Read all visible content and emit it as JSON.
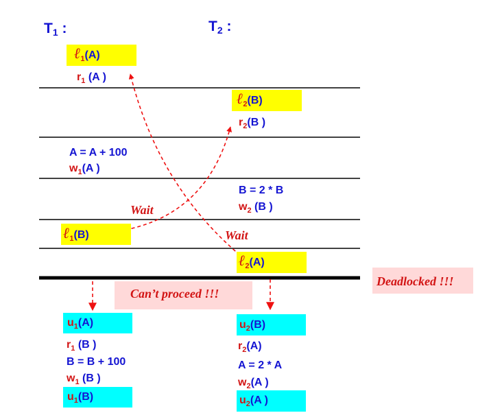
{
  "headers": {
    "t1": {
      "name": "T",
      "sub": "1",
      "colon": ":"
    },
    "t2": {
      "name": "T",
      "sub": "2",
      "colon": ":"
    }
  },
  "lock_glyph": "ℓ",
  "steps": {
    "l1A": {
      "sub": "1",
      "open": "(",
      "item": "A",
      "close": ")"
    },
    "r1A": {
      "op": "r",
      "sub": "1",
      "open": "(",
      "item": "A",
      "close": ")"
    },
    "l2B": {
      "sub": "2",
      "open": "(",
      "item": "B",
      "close": ")"
    },
    "r2B": {
      "op": "r",
      "sub": "2",
      "open": "(",
      "item": "B",
      "close": ")"
    },
    "calcA": "A = A + 100",
    "w1A": {
      "op": "w",
      "sub": "1",
      "open": "(",
      "item": "A",
      "close": ")"
    },
    "calcB": "B = 2 * B",
    "w2B": {
      "op": "w",
      "sub": "2",
      "open": "(",
      "item": "B",
      "close": ")"
    },
    "l1B": {
      "sub": "1",
      "open": "(",
      "item": "B",
      "close": ")"
    },
    "l2A": {
      "sub": "2",
      "open": "(",
      "item": "A",
      "close": ")"
    }
  },
  "annotations": {
    "wait_left": "Wait",
    "wait_right": "Wait",
    "cant_proceed": "Can’t proceed !!!",
    "deadlocked": "Deadlocked !!!"
  },
  "after": {
    "u1A": {
      "op": "u",
      "sub": "1",
      "open": "(",
      "item": "A",
      "close": ")"
    },
    "r1B": {
      "op": "r",
      "sub": "1",
      "open": "(",
      "item": "B",
      "close": ")"
    },
    "calcB2": "B = B + 100",
    "w1B": {
      "op": "w",
      "sub": "1",
      "open": "(",
      "item": "B",
      "close": ")"
    },
    "u1B": {
      "op": "u",
      "sub": "1",
      "open": "(",
      "item": "B",
      "close": ")"
    },
    "u2B": {
      "op": "u",
      "sub": "2",
      "open": "(",
      "item": "B",
      "close": ")"
    },
    "r2A": {
      "op": "r",
      "sub": "2",
      "open": "(",
      "item": "A",
      "close": ")"
    },
    "calcA2": "A = 2 * A",
    "w2A": {
      "op": "w",
      "sub": "2",
      "open": "(",
      "item": "A",
      "close": ")"
    },
    "u2A": {
      "op": "u",
      "sub": "2",
      "open": "(",
      "item": "A",
      "close": ")"
    }
  },
  "colors": {
    "lock_box": "#ffff00",
    "unlock_box": "#00ffff",
    "note_box": "#ffd9d9",
    "text_blue": "#1414d2",
    "text_red": "#d21414",
    "arrow": "#ee1111"
  }
}
